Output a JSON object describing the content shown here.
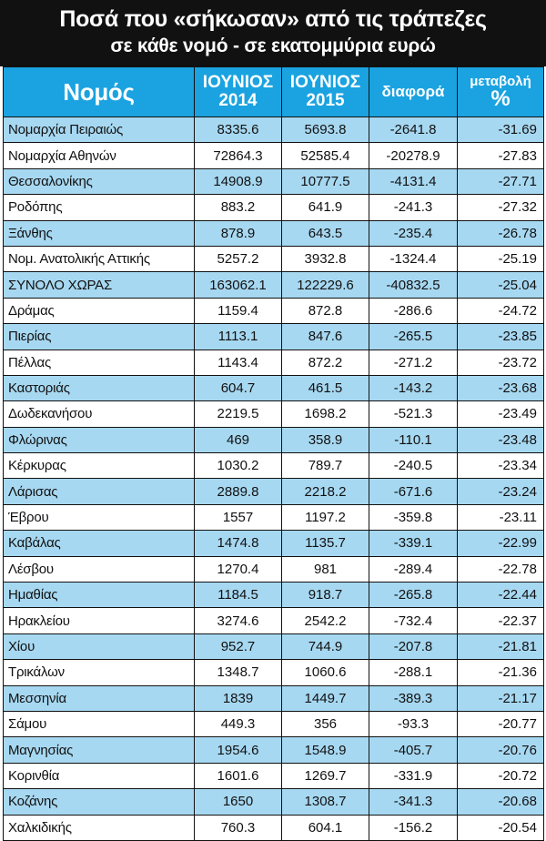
{
  "title": {
    "line1": "Ποσά που «σήκωσαν» από τις τράπεζες",
    "line2": "σε κάθε νομό  -  σε εκατομμύρια ευρώ"
  },
  "headers": {
    "name": "Νομός",
    "y2014_top": "ΙΟΥΝΙΟΣ",
    "y2014_bottom": "2014",
    "y2015_top": "ΙΟΥΝΙΟΣ",
    "y2015_bottom": "2015",
    "diff": "διαφορά",
    "pct_top": "μεταβολή",
    "pct_sign": "%"
  },
  "colors": {
    "header_bg": "#1aa3e0",
    "row_blue": "#a7d8f1",
    "row_white": "#ffffff",
    "title_bg": "#111111"
  },
  "rows": [
    {
      "name": "Νομαρχία Πειραιώς",
      "y2014": "8335.6",
      "y2015": "5693.8",
      "diff": "-2641.8",
      "pct": "-31.69",
      "shade": "blue"
    },
    {
      "name": "Νομαρχία Αθηνών",
      "y2014": "72864.3",
      "y2015": "52585.4",
      "diff": "-20278.9",
      "pct": "-27.83",
      "shade": "white"
    },
    {
      "name": "Θεσσαλονίκης",
      "y2014": "14908.9",
      "y2015": "10777.5",
      "diff": "-4131.4",
      "pct": "-27.71",
      "shade": "blue"
    },
    {
      "name": "Ροδόπης",
      "y2014": "883.2",
      "y2015": "641.9",
      "diff": "-241.3",
      "pct": "-27.32",
      "shade": "white"
    },
    {
      "name": "Ξάνθης",
      "y2014": "878.9",
      "y2015": "643.5",
      "diff": "-235.4",
      "pct": "-26.78",
      "shade": "blue"
    },
    {
      "name": "Νομ. Ανατολικής Αττικής",
      "y2014": "5257.2",
      "y2015": "3932.8",
      "diff": "-1324.4",
      "pct": "-25.19",
      "shade": "white"
    },
    {
      "name": "ΣΥΝΟΛΟ ΧΩΡΑΣ",
      "y2014": "163062.1",
      "y2015": "122229.6",
      "diff": "-40832.5",
      "pct": "-25.04",
      "shade": "blue"
    },
    {
      "name": "Δράμας",
      "y2014": "1159.4",
      "y2015": "872.8",
      "diff": "-286.6",
      "pct": "-24.72",
      "shade": "white"
    },
    {
      "name": "Πιερίας",
      "y2014": "1113.1",
      "y2015": "847.6",
      "diff": "-265.5",
      "pct": "-23.85",
      "shade": "blue"
    },
    {
      "name": "Πέλλας",
      "y2014": "1143.4",
      "y2015": "872.2",
      "diff": "-271.2",
      "pct": "-23.72",
      "shade": "white"
    },
    {
      "name": "Καστοριάς",
      "y2014": "604.7",
      "y2015": "461.5",
      "diff": "-143.2",
      "pct": "-23.68",
      "shade": "blue"
    },
    {
      "name": "Δωδεκανήσου",
      "y2014": "2219.5",
      "y2015": "1698.2",
      "diff": "-521.3",
      "pct": "-23.49",
      "shade": "white"
    },
    {
      "name": "Φλώρινας",
      "y2014": "469",
      "y2015": "358.9",
      "diff": "-110.1",
      "pct": "-23.48",
      "shade": "blue"
    },
    {
      "name": "Κέρκυρας",
      "y2014": "1030.2",
      "y2015": "789.7",
      "diff": "-240.5",
      "pct": "-23.34",
      "shade": "white"
    },
    {
      "name": "Λάρισας",
      "y2014": "2889.8",
      "y2015": "2218.2",
      "diff": "-671.6",
      "pct": "-23.24",
      "shade": "blue"
    },
    {
      "name": "Έβρου",
      "y2014": "1557",
      "y2015": "1197.2",
      "diff": "-359.8",
      "pct": "-23.11",
      "shade": "white"
    },
    {
      "name": "Καβάλας",
      "y2014": "1474.8",
      "y2015": "1135.7",
      "diff": "-339.1",
      "pct": "-22.99",
      "shade": "blue"
    },
    {
      "name": "Λέσβου",
      "y2014": "1270.4",
      "y2015": "981",
      "diff": "-289.4",
      "pct": "-22.78",
      "shade": "white"
    },
    {
      "name": "Ημαθίας",
      "y2014": "1184.5",
      "y2015": "918.7",
      "diff": "-265.8",
      "pct": "-22.44",
      "shade": "blue"
    },
    {
      "name": "Ηρακλείου",
      "y2014": "3274.6",
      "y2015": "2542.2",
      "diff": "-732.4",
      "pct": "-22.37",
      "shade": "white"
    },
    {
      "name": "Χίου",
      "y2014": "952.7",
      "y2015": "744.9",
      "diff": "-207.8",
      "pct": "-21.81",
      "shade": "blue"
    },
    {
      "name": "Τρικάλων",
      "y2014": "1348.7",
      "y2015": "1060.6",
      "diff": "-288.1",
      "pct": "-21.36",
      "shade": "white"
    },
    {
      "name": "Μεσσηνία",
      "y2014": "1839",
      "y2015": "1449.7",
      "diff": "-389.3",
      "pct": "-21.17",
      "shade": "blue"
    },
    {
      "name": "Σάμου",
      "y2014": "449.3",
      "y2015": "356",
      "diff": "-93.3",
      "pct": "-20.77",
      "shade": "white"
    },
    {
      "name": "Μαγνησίας",
      "y2014": "1954.6",
      "y2015": "1548.9",
      "diff": "-405.7",
      "pct": "-20.76",
      "shade": "blue"
    },
    {
      "name": "Κορινθία",
      "y2014": "1601.6",
      "y2015": "1269.7",
      "diff": "-331.9",
      "pct": "-20.72",
      "shade": "white"
    },
    {
      "name": "Κοζάνης",
      "y2014": "1650",
      "y2015": "1308.7",
      "diff": "-341.3",
      "pct": "-20.68",
      "shade": "blue"
    },
    {
      "name": "Χαλκιδικής",
      "y2014": "760.3",
      "y2015": "604.1",
      "diff": "-156.2",
      "pct": "-20.54",
      "shade": "white"
    }
  ]
}
